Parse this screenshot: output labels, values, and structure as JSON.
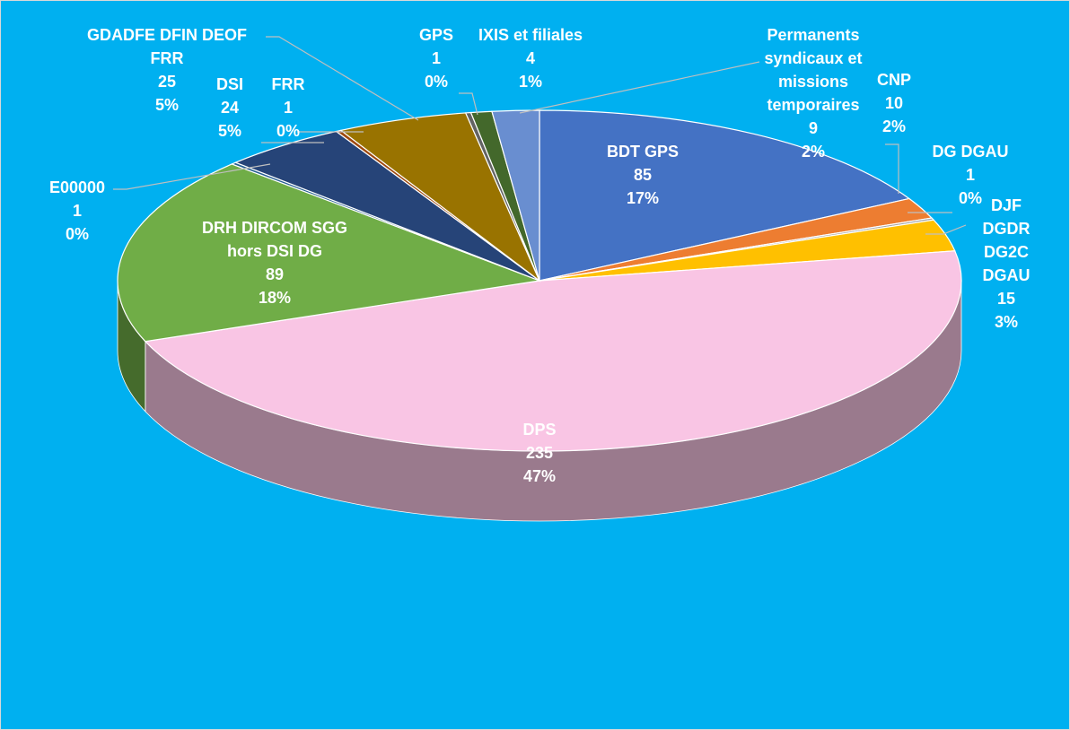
{
  "chart_data": {
    "type": "pie3d",
    "categories": [
      "BDT GPS",
      "CNP",
      "DG DGAU",
      "DJF\nDGDR\nDG2C\nDGAU",
      "DPS",
      "DRH DIRCOM SGG\nhors DSI DG",
      "E00000",
      "DSI",
      "FRR",
      "GDADFE DFIN DEOF\nFRR",
      "GPS",
      "IXIS et filiales",
      "Permanents\nsyndicaux et\nmissions\ntemporaires"
    ],
    "values": [
      85,
      10,
      1,
      15,
      235,
      89,
      1,
      24,
      1,
      25,
      1,
      4,
      9
    ],
    "percent_labels": [
      "17%",
      "2%",
      "0%",
      "3%",
      "47%",
      "18%",
      "0%",
      "5%",
      "0%",
      "5%",
      "0%",
      "1%",
      "2%"
    ],
    "colors": [
      "#4472c4",
      "#ed7d31",
      "#a5a5a5",
      "#ffc000",
      "#f9c5e4",
      "#70ad47",
      "#255e91",
      "#264478",
      "#9e480e",
      "#997300",
      "#636363",
      "#43682b",
      "#698ed0"
    ]
  }
}
